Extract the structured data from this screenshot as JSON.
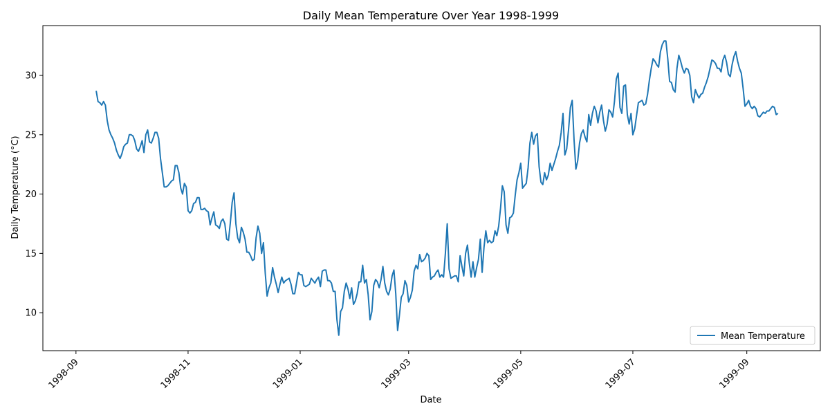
{
  "chart_data": {
    "type": "line",
    "title": "Daily Mean Temperature Over Year 1998-1999",
    "xlabel": "Date",
    "ylabel": "Daily Temperature (°C)",
    "x_start": "1998-09-12",
    "x_end": "1999-09-12",
    "xlim": [
      "1998-08-14",
      "1999-10-11"
    ],
    "ylim": [
      6.8,
      34.2
    ],
    "x_ticks": [
      {
        "date": "1998-09-01",
        "label": "1998-09"
      },
      {
        "date": "1998-11-01",
        "label": "1998-11"
      },
      {
        "date": "1999-01-01",
        "label": "1999-01"
      },
      {
        "date": "1999-03-01",
        "label": "1999-03"
      },
      {
        "date": "1999-05-01",
        "label": "1999-05"
      },
      {
        "date": "1999-07-01",
        "label": "1999-07"
      },
      {
        "date": "1999-09-01",
        "label": "1999-09"
      }
    ],
    "y_ticks": [
      10,
      15,
      20,
      25,
      30
    ],
    "grid": false,
    "legend": {
      "position": "lower right"
    },
    "colors": {
      "line": "#1f77b4"
    },
    "series": [
      {
        "name": "Mean Temperature",
        "values": [
          28.7,
          27.8,
          27.7,
          27.5,
          27.8,
          27.5,
          26.2,
          25.4,
          25.0,
          24.7,
          24.3,
          23.7,
          23.3,
          23.0,
          23.4,
          24.0,
          24.2,
          24.3,
          25.0,
          25.0,
          24.9,
          24.5,
          23.8,
          23.6,
          24.0,
          24.5,
          23.5,
          25.0,
          25.4,
          24.4,
          24.3,
          24.7,
          25.2,
          25.2,
          24.7,
          23.0,
          21.8,
          20.6,
          20.6,
          20.7,
          20.9,
          21.1,
          21.2,
          22.4,
          22.4,
          21.8,
          20.5,
          20.0,
          20.9,
          20.6,
          18.6,
          18.4,
          18.6,
          19.2,
          19.3,
          19.7,
          19.7,
          18.7,
          18.7,
          18.8,
          18.6,
          18.5,
          17.4,
          18.0,
          18.5,
          17.4,
          17.3,
          17.1,
          17.7,
          17.9,
          17.5,
          16.2,
          16.1,
          17.6,
          19.3,
          20.1,
          17.5,
          16.3,
          15.9,
          17.2,
          16.8,
          16.2,
          15.1,
          15.1,
          14.8,
          14.4,
          14.5,
          16.3,
          17.3,
          16.7,
          15.0,
          15.9,
          13.3,
          11.4,
          12.1,
          12.5,
          13.8,
          13.0,
          12.4,
          11.7,
          12.4,
          13.0,
          12.5,
          12.7,
          12.8,
          12.9,
          12.4,
          11.6,
          11.6,
          12.5,
          13.4,
          13.2,
          13.2,
          12.3,
          12.2,
          12.3,
          12.4,
          12.9,
          12.7,
          12.5,
          12.8,
          13.0,
          12.2,
          13.5,
          13.6,
          13.6,
          12.7,
          12.7,
          12.5,
          11.8,
          11.8,
          9.4,
          8.1,
          10.1,
          10.4,
          11.8,
          12.5,
          12.0,
          11.2,
          12.1,
          10.7,
          11.0,
          11.6,
          12.6,
          12.6,
          14.0,
          12.5,
          12.8,
          11.5,
          9.4,
          10.1,
          12.3,
          12.8,
          12.6,
          12.1,
          12.8,
          13.9,
          12.5,
          11.8,
          11.5,
          12.0,
          13.1,
          13.6,
          11.6,
          8.5,
          9.8,
          11.3,
          11.6,
          12.7,
          12.3,
          10.9,
          11.3,
          11.9,
          13.5,
          14.0,
          13.7,
          14.9,
          14.3,
          14.4,
          14.6,
          15.0,
          14.8,
          12.8,
          13.0,
          13.1,
          13.4,
          13.6,
          13.0,
          13.2,
          13.0,
          15.0,
          17.5,
          13.7,
          12.9,
          13.0,
          13.1,
          13.1,
          12.6,
          14.8,
          13.9,
          13.1,
          15.0,
          15.7,
          14.2,
          13.0,
          14.3,
          13.0,
          13.8,
          14.5,
          16.2,
          13.4,
          15.5,
          16.9,
          15.9,
          16.1,
          15.9,
          16.0,
          16.9,
          16.5,
          17.3,
          18.8,
          20.7,
          20.2,
          17.4,
          16.7,
          18.0,
          18.1,
          18.4,
          19.9,
          21.2,
          21.8,
          22.6,
          20.5,
          20.7,
          20.9,
          22.2,
          24.3,
          25.2,
          24.2,
          24.9,
          25.1,
          22.3,
          21.0,
          20.8,
          21.8,
          21.2,
          21.6,
          22.6,
          22.0,
          22.5,
          23.0,
          23.6,
          24.1,
          25.2,
          26.8,
          23.3,
          23.8,
          25.4,
          27.3,
          27.9,
          24.6,
          22.1,
          22.8,
          24.3,
          25.1,
          25.4,
          24.8,
          24.4,
          26.7,
          25.8,
          26.8,
          27.4,
          27.0,
          26.0,
          26.9,
          27.5,
          26.2,
          25.3,
          25.9,
          27.1,
          26.9,
          26.5,
          27.8,
          29.7,
          30.2,
          27.3,
          26.8,
          29.1,
          29.2,
          26.7,
          25.9,
          26.8,
          25.0,
          25.5,
          26.6,
          27.7,
          27.8,
          27.9,
          27.5,
          27.6,
          28.4,
          29.6,
          30.6,
          31.4,
          31.2,
          30.9,
          30.7,
          32.0,
          32.6,
          32.9,
          32.9,
          31.4,
          29.5,
          29.4,
          28.8,
          28.6,
          30.6,
          31.7,
          31.2,
          30.6,
          30.2,
          30.6,
          30.5,
          30.0,
          28.2,
          27.7,
          28.8,
          28.4,
          28.1,
          28.4,
          28.5,
          29.0,
          29.4,
          29.9,
          30.6,
          31.3,
          31.2,
          31.0,
          30.6,
          30.6,
          30.3,
          31.3,
          31.7,
          31.1,
          30.1,
          29.9,
          30.9,
          31.6,
          32.0,
          31.2,
          30.6,
          30.2,
          28.9,
          27.4,
          27.6,
          27.9,
          27.4,
          27.2,
          27.4,
          27.2,
          26.6,
          26.5,
          26.7,
          26.9,
          26.8,
          27.0,
          27.0,
          27.2,
          27.4,
          27.3,
          26.7,
          26.8
        ]
      }
    ]
  }
}
